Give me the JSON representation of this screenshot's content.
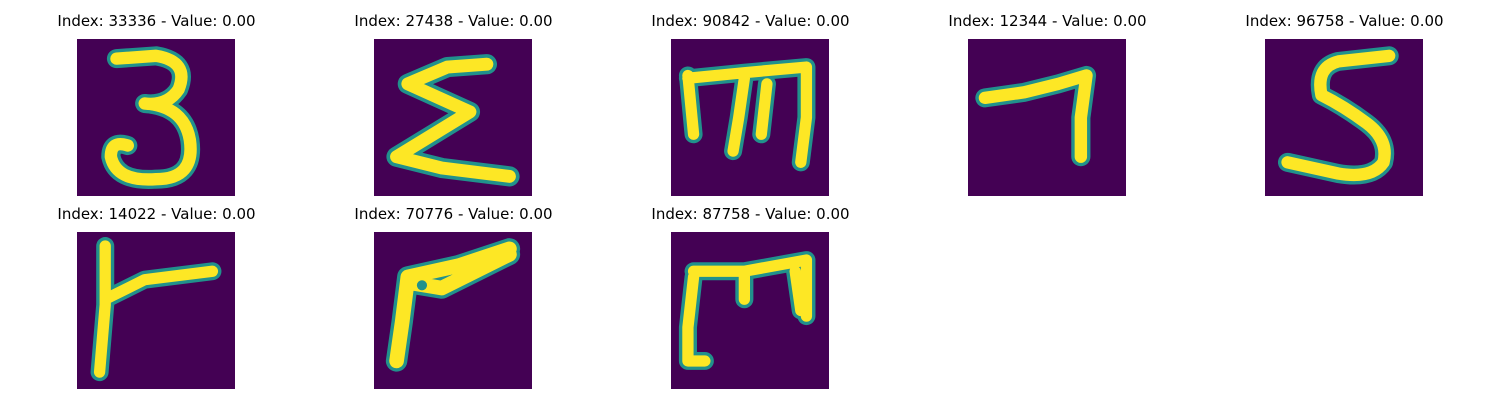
{
  "colors": {
    "background": "#440154",
    "foreground": "#fde725",
    "edge": "#21918c"
  },
  "panels": [
    {
      "title": "Index: 33336 - Value: 0.00",
      "glyph": "three-like"
    },
    {
      "title": "Index: 27438 - Value: 0.00",
      "glyph": "sigma-like"
    },
    {
      "title": "Index: 90842 - Value: 0.00",
      "glyph": "m-like"
    },
    {
      "title": "Index: 12344 - Value: 0.00",
      "glyph": "seven-like"
    },
    {
      "title": "Index: 96758 - Value: 0.00",
      "glyph": "five-like"
    },
    {
      "title": "Index: 14022 - Value: 0.00",
      "glyph": "r-like"
    },
    {
      "title": "Index: 70776 - Value: 0.00",
      "glyph": "angle-like"
    },
    {
      "title": "Index: 87758 - Value: 0.00",
      "glyph": "m-hook-like"
    }
  ]
}
